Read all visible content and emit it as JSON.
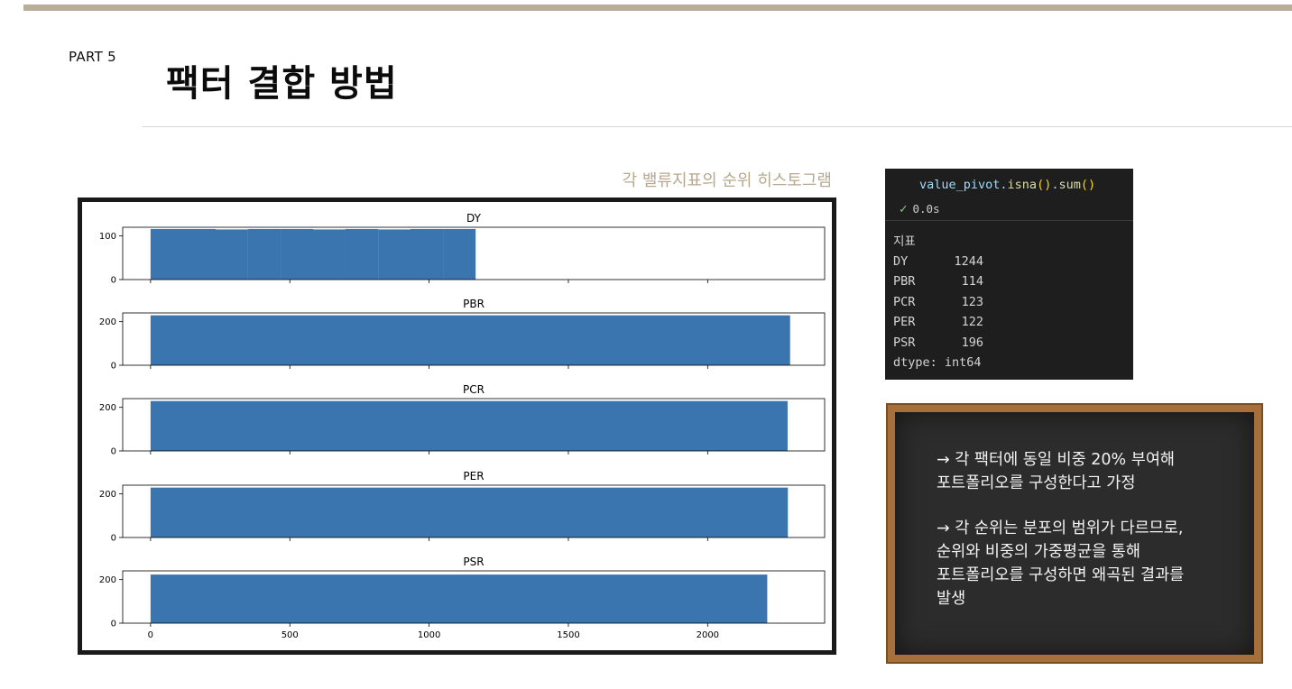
{
  "header": {
    "part": "PART 5",
    "title": "팩터 결합 방법"
  },
  "chart_caption": "각 밸류지표의 순위 히스토그램",
  "chart_data": [
    {
      "type": "bar",
      "title": "DY",
      "x": [
        0,
        117,
        233,
        350,
        467,
        583,
        700,
        817,
        933,
        1050
      ],
      "width": 117,
      "values": [
        116,
        116,
        115,
        116,
        116,
        115,
        116,
        115,
        116,
        116
      ],
      "ylim": [
        0,
        120
      ],
      "yticks": [
        0,
        100
      ]
    },
    {
      "type": "bar",
      "title": "PBR",
      "x": [
        0
      ],
      "width": 2296,
      "values": [
        229
      ],
      "ylim": [
        0,
        240
      ],
      "yticks": [
        0,
        200
      ]
    },
    {
      "type": "bar",
      "title": "PCR",
      "x": [
        0
      ],
      "width": 2287,
      "values": [
        229
      ],
      "ylim": [
        0,
        240
      ],
      "yticks": [
        0,
        200
      ]
    },
    {
      "type": "bar",
      "title": "PER",
      "x": [
        0
      ],
      "width": 2288,
      "values": [
        229
      ],
      "ylim": [
        0,
        240
      ],
      "yticks": [
        0,
        200
      ]
    },
    {
      "type": "bar",
      "title": "PSR",
      "x": [
        0
      ],
      "width": 2214,
      "values": [
        223
      ],
      "ylim": [
        0,
        240
      ],
      "yticks": [
        0,
        200
      ]
    }
  ],
  "chart_xaxis": {
    "xlim": [
      -100,
      2420
    ],
    "ticks": [
      "0",
      "500",
      "1000",
      "1500",
      "2000"
    ]
  },
  "code": {
    "object": "value_pivot",
    "dot1": ".",
    "method1": "isna",
    "parens1": "()",
    "dot2": ".",
    "method2": "sum",
    "parens2": "()",
    "exec_time": "0.0s",
    "output_header": "지표",
    "output": [
      {
        "key": "DY",
        "value": "1244"
      },
      {
        "key": "PBR",
        "value": "114"
      },
      {
        "key": "PCR",
        "value": "123"
      },
      {
        "key": "PER",
        "value": "122"
      },
      {
        "key": "PSR",
        "value": "196"
      }
    ],
    "dtype": "dtype: int64"
  },
  "board": {
    "line1a": "→ 각 팩터에 동일 비중 20% 부여해",
    "line1b": "포트폴리오를 구성한다고 가정",
    "line2a": "→ 각 순위는 분포의 범위가 다르므로,",
    "line2b": "순위와 비중의 가중평균을 통해",
    "line2c": "포트폴리오를 구성하면 왜곡된 결과를",
    "line2d": "발생"
  },
  "colors": {
    "bar": "#3b75af",
    "accent": "#b7ad98",
    "board_frame": "#a7703b"
  }
}
